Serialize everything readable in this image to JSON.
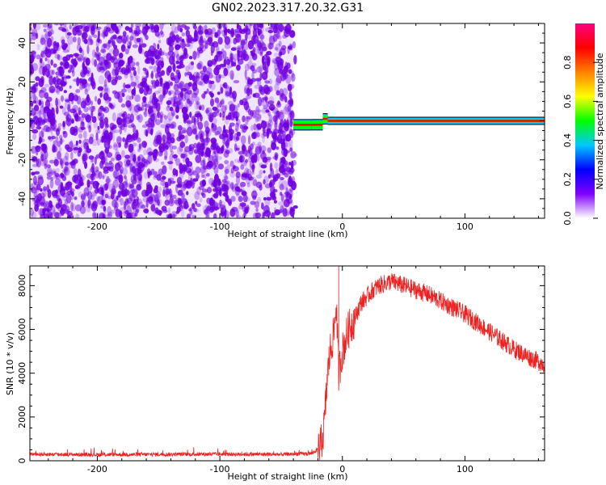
{
  "title": "GN02.2023.317.20.32.G31",
  "chart_data": [
    {
      "type": "heatmap",
      "xlabel": "Height of straight line (km)",
      "ylabel": "Frequency (Hz)",
      "xlim": [
        -255,
        165
      ],
      "ylim": [
        -50,
        50
      ],
      "x_ticks": [
        -200,
        -100,
        0,
        100
      ],
      "y_ticks": [
        -40,
        -20,
        0,
        20,
        40
      ],
      "colorbar": {
        "label": "Normalized spectral amplitude",
        "range": [
          0,
          1
        ],
        "ticks": [
          "0.0",
          "0.2",
          "0.4",
          "0.6",
          "0.8"
        ],
        "colors": [
          "#ffffff",
          "#8000ff",
          "#0000ff",
          "#00c8ff",
          "#00ff00",
          "#ffff00",
          "#ff8000",
          "#ff0000",
          "#ff0080"
        ]
      },
      "noise_region_x": [
        -255,
        -40
      ],
      "noise_color": "#7000e0",
      "signal_segments": [
        {
          "x": [
            -40,
            -25
          ],
          "frequency": -2
        },
        {
          "x": [
            -25,
            -16
          ],
          "frequency": -2
        },
        {
          "x": [
            -16,
            -12
          ],
          "frequency": 1
        },
        {
          "x": [
            -12,
            165
          ],
          "frequency": 0
        }
      ]
    },
    {
      "type": "line",
      "xlabel": "Height of straight line (km)",
      "ylabel": "SNR (10 * v/v)",
      "xlim": [
        -255,
        165
      ],
      "ylim": [
        0,
        8900
      ],
      "x_ticks": [
        -200,
        -100,
        0,
        100
      ],
      "y_ticks": [
        0,
        2000,
        4000,
        6000,
        8000
      ],
      "line_color": "#ee2020",
      "envelope": {
        "x": [
          -255,
          -200,
          -150,
          -100,
          -50,
          -25,
          -18,
          -15,
          -12,
          -10,
          -7,
          -5,
          -3,
          0,
          5,
          10,
          15,
          20,
          25,
          30,
          40,
          50,
          60,
          70,
          80,
          90,
          100,
          110,
          120,
          130,
          140,
          150,
          165
        ],
        "y": [
          300,
          280,
          290,
          300,
          290,
          330,
          600,
          1500,
          4000,
          5000,
          5800,
          7200,
          4000,
          5000,
          6000,
          6500,
          7200,
          7500,
          7800,
          8000,
          8200,
          8000,
          7800,
          7600,
          7300,
          7000,
          6700,
          6300,
          5900,
          5500,
          5100,
          4800,
          4400
        ]
      },
      "spike": {
        "x": -3,
        "y": 8900
      }
    }
  ]
}
